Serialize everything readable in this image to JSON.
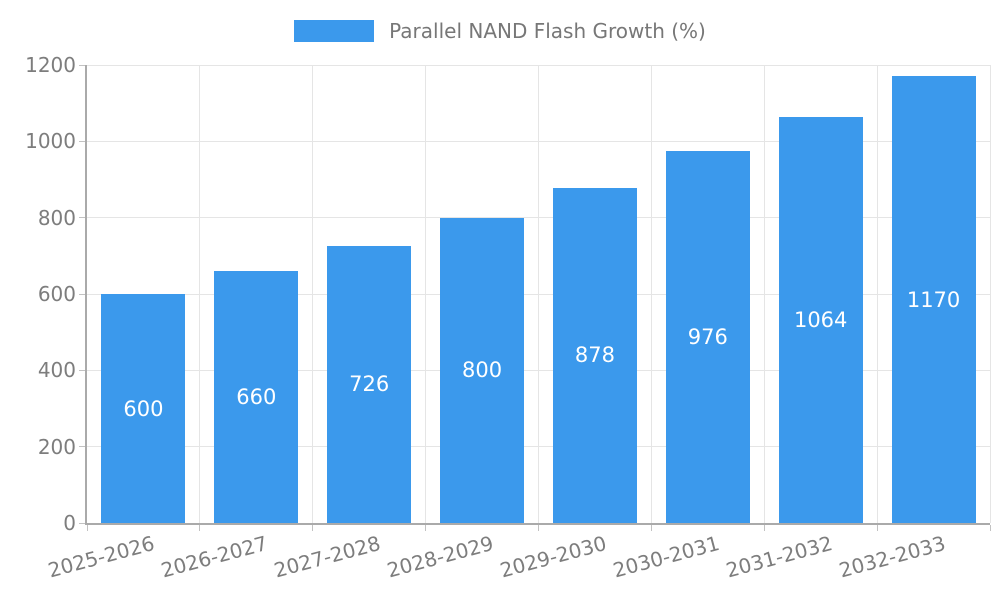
{
  "chart_data": {
    "type": "bar",
    "title": "Parallel NAND Flash Growth (%)",
    "categories": [
      "2025-2026",
      "2026-2027",
      "2027-2028",
      "2028-2029",
      "2029-2030",
      "2030-2031",
      "2031-2032",
      "2032-2033"
    ],
    "series": [
      {
        "name": "Parallel NAND Flash Growth (%)",
        "values": [
          600,
          660,
          726,
          800,
          878,
          976,
          1064,
          1170
        ]
      }
    ],
    "bar_labels": [
      "600",
      "660",
      "726",
      "800",
      "878",
      "976",
      "1064",
      "1170"
    ],
    "xlabel": "",
    "ylabel": "",
    "ylim": [
      0,
      1200
    ],
    "yticks": [
      0,
      200,
      400,
      600,
      800,
      1000,
      1200
    ],
    "grid": true,
    "legend_position": "top",
    "x_label_rotation_deg": -15
  },
  "colors": {
    "bar": "#3b99ec",
    "bar_label_text": "#ffffff",
    "grid": "#e5e5e5",
    "axis_line": "#aaaaaa",
    "tick_mark": "#c2c2c2",
    "tick_text": "#7d7d7d",
    "title_text": "#777777",
    "background": "#ffffff"
  }
}
